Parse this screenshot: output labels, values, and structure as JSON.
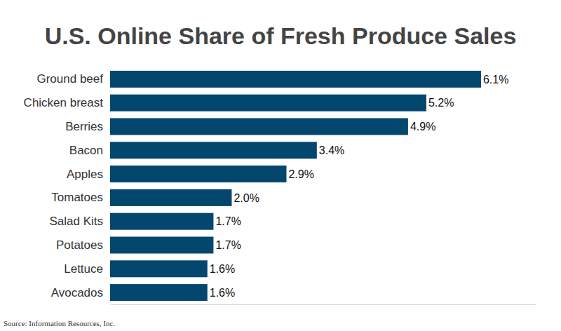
{
  "chart_data": {
    "type": "bar",
    "orientation": "horizontal",
    "title": "U.S. Online Share of Fresh Produce Sales",
    "source": "Source: Information Resources, Inc.",
    "categories": [
      "Ground beef",
      "Chicken breast",
      "Berries",
      "Bacon",
      "Apples",
      "Tomatoes",
      "Salad Kits",
      "Potatoes",
      "Lettuce",
      "Avocados"
    ],
    "values": [
      6.1,
      5.2,
      4.9,
      3.4,
      2.9,
      2.0,
      1.7,
      1.7,
      1.6,
      1.6
    ],
    "value_labels": [
      "6.1%",
      "5.2%",
      "4.9%",
      "3.4%",
      "2.9%",
      "2.0%",
      "1.7%",
      "1.7%",
      "1.6%",
      "1.6%"
    ],
    "color": "#03466e",
    "xlim": [
      0,
      7
    ],
    "data_labels": true,
    "tick_labels": "y",
    "grid": false
  }
}
